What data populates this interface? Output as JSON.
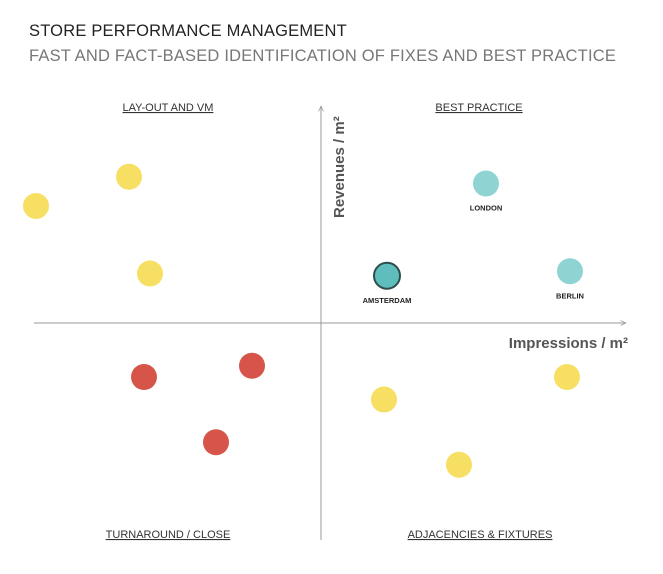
{
  "header": {
    "title": "STORE PERFORMANCE MANAGEMENT",
    "subtitle": "FAST AND FACT-BASED IDENTIFICATION OF FIXES AND BEST PRACTICE"
  },
  "colors": {
    "yellow": "#f7df63",
    "red": "#d6544a",
    "teal": "#90d3d3",
    "teal_highlight": "#5fbdbd",
    "highlight_stroke": "#2f4d4d",
    "axis": "#9a9a9a"
  },
  "chart_data": {
    "type": "scatter",
    "xlabel": "Impressions / m²",
    "ylabel": "Revenues / m²",
    "xlim": [
      -100,
      100
    ],
    "ylim": [
      -100,
      100
    ],
    "grid": false,
    "quadrants": {
      "top_left": "LAY-OUT AND VM",
      "top_right": "BEST PRACTICE",
      "bottom_left": "TURNAROUND / CLOSE",
      "bottom_right": "ADJACENCIES & FIXTURES"
    },
    "points": [
      {
        "x": -64,
        "y": 65,
        "color": "yellow"
      },
      {
        "x": -95,
        "y": 52,
        "color": "yellow"
      },
      {
        "x": -57,
        "y": 22,
        "color": "yellow"
      },
      {
        "x": 22,
        "y": 21,
        "color": "teal",
        "label": "AMSTERDAM",
        "highlight": true
      },
      {
        "x": 55,
        "y": 62,
        "color": "teal",
        "label": "LONDON"
      },
      {
        "x": 83,
        "y": 23,
        "color": "teal",
        "label": "BERLIN"
      },
      {
        "x": -23,
        "y": -19,
        "color": "red"
      },
      {
        "x": -59,
        "y": -24,
        "color": "red"
      },
      {
        "x": -35,
        "y": -53,
        "color": "red"
      },
      {
        "x": 21,
        "y": -34,
        "color": "yellow"
      },
      {
        "x": 82,
        "y": -24,
        "color": "yellow"
      },
      {
        "x": 46,
        "y": -63,
        "color": "yellow"
      }
    ]
  }
}
